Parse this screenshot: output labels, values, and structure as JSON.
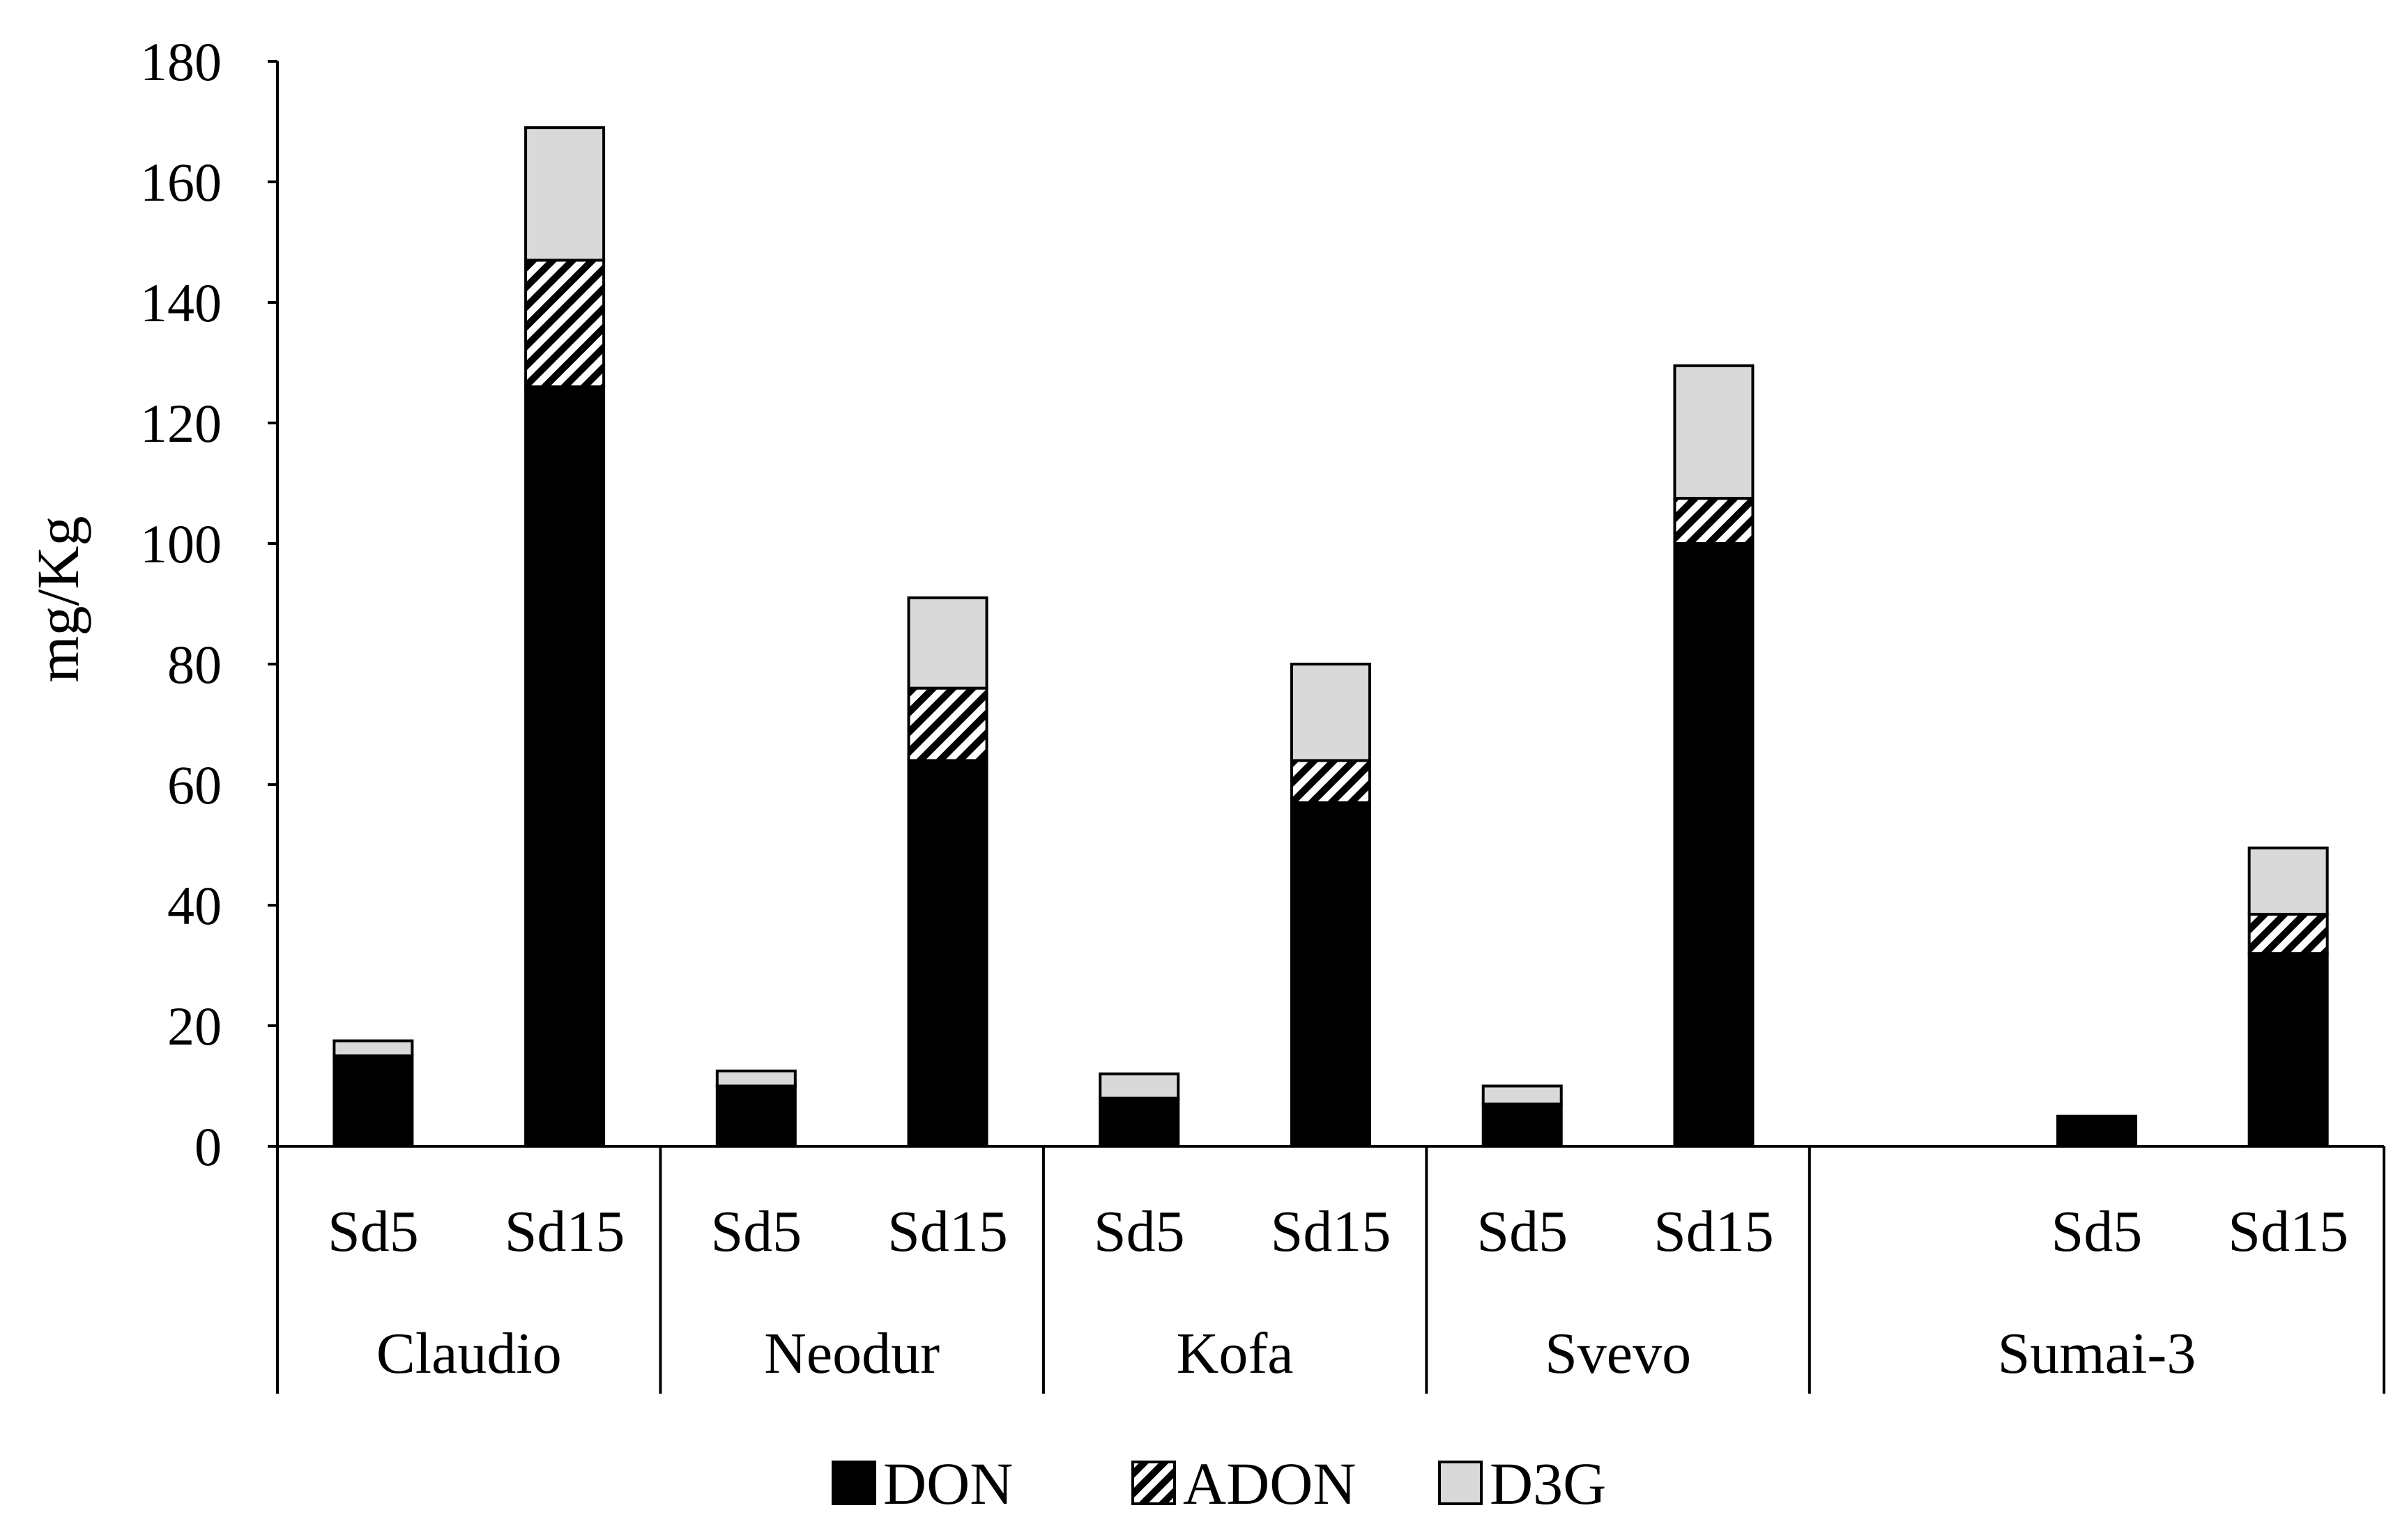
{
  "chart_data": {
    "type": "bar",
    "stacked": true,
    "ylabel": "mg/Kg",
    "ylim": [
      0,
      180
    ],
    "yticks": [
      0,
      20,
      40,
      60,
      80,
      100,
      120,
      140,
      160,
      180
    ],
    "grid": false,
    "legend_position": "bottom",
    "groups": [
      {
        "name": "Claudio",
        "slot_count": 2
      },
      {
        "name": "Neodur",
        "slot_count": 2
      },
      {
        "name": "Kofa",
        "slot_count": 2
      },
      {
        "name": "Svevo",
        "slot_count": 2
      },
      {
        "name": "Sumai-3",
        "slot_count": 3
      }
    ],
    "bars": [
      {
        "group": "Claudio",
        "label": "Sd5",
        "slot": 0,
        "DON": 15,
        "ADON": 0,
        "D3G": 2.5
      },
      {
        "group": "Claudio",
        "label": "Sd15",
        "slot": 1,
        "DON": 126,
        "ADON": 21,
        "D3G": 22
      },
      {
        "group": "Neodur",
        "label": "Sd5",
        "slot": 0,
        "DON": 10,
        "ADON": 0,
        "D3G": 2.5
      },
      {
        "group": "Neodur",
        "label": "Sd15",
        "slot": 1,
        "DON": 64,
        "ADON": 12,
        "D3G": 15
      },
      {
        "group": "Kofa",
        "label": "Sd5",
        "slot": 0,
        "DON": 8,
        "ADON": 0,
        "D3G": 4
      },
      {
        "group": "Kofa",
        "label": "Sd15",
        "slot": 1,
        "DON": 57,
        "ADON": 7,
        "D3G": 16
      },
      {
        "group": "Svevo",
        "label": "Sd5",
        "slot": 0,
        "DON": 7,
        "ADON": 0,
        "D3G": 3
      },
      {
        "group": "Svevo",
        "label": "Sd15",
        "slot": 1,
        "DON": 100,
        "ADON": 7.5,
        "D3G": 22
      },
      {
        "group": "Sumai-3",
        "label": "Sd5",
        "slot": 1,
        "DON": 5,
        "ADON": 0,
        "D3G": 0
      },
      {
        "group": "Sumai-3",
        "label": "Sd15",
        "slot": 2,
        "DON": 32,
        "ADON": 6.5,
        "D3G": 11
      }
    ],
    "series": [
      {
        "name": "DON",
        "key": "DON",
        "color": "#000000",
        "pattern": "solid"
      },
      {
        "name": "ADON",
        "key": "ADON",
        "color": "#000000",
        "pattern": "diagonal-stripes"
      },
      {
        "name": "D3G",
        "key": "D3G",
        "color": "#d9d9d9",
        "pattern": "solid"
      }
    ]
  }
}
